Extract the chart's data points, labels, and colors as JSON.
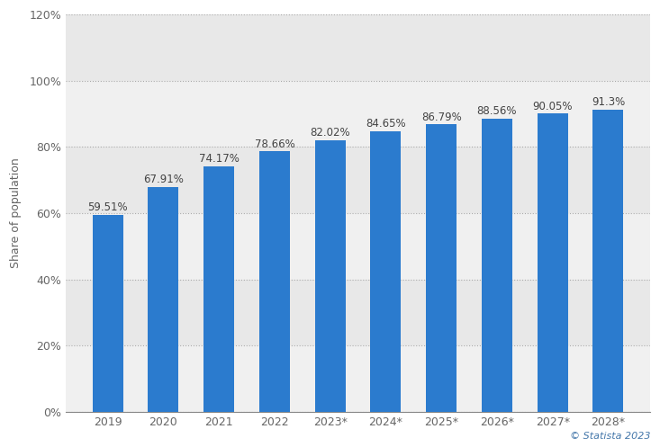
{
  "categories": [
    "2019",
    "2020",
    "2021",
    "2022",
    "2023*",
    "2024*",
    "2025*",
    "2026*",
    "2027*",
    "2028*"
  ],
  "values": [
    59.51,
    67.91,
    74.17,
    78.66,
    82.02,
    84.65,
    86.79,
    88.56,
    90.05,
    91.3
  ],
  "labels": [
    "59.51%",
    "67.91%",
    "74.17%",
    "78.66%",
    "82.02%",
    "84.65%",
    "86.79%",
    "88.56%",
    "90.05%",
    "91.3%"
  ],
  "bar_color": "#2b7bce",
  "ylabel": "Share of population",
  "ylim": [
    0,
    120
  ],
  "yticks": [
    0,
    20,
    40,
    60,
    80,
    100,
    120
  ],
  "ytick_labels": [
    "0%",
    "20%",
    "40%",
    "60%",
    "80%",
    "100%",
    "120%"
  ],
  "background_color": "#ffffff",
  "plot_bg_color": "#e8e8e8",
  "band_color_light": "#f0f0f0",
  "grid_color": "#cccccc",
  "watermark": "© Statista 2023",
  "watermark_color": "#4477aa",
  "label_fontsize": 8.5,
  "axis_fontsize": 9,
  "tick_fontsize": 9,
  "bar_width": 0.55
}
